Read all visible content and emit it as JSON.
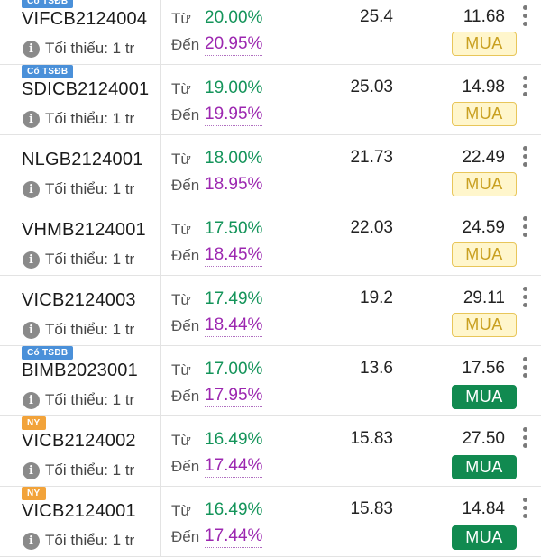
{
  "bonds": [
    {
      "tag": "Có TSĐB",
      "tag_color": "#4a90d9",
      "code": "VIFCB2124004",
      "minimum": "Tối thiểu: 1 tr",
      "from_label": "Từ",
      "from_rate": "20.00%",
      "to_label": "Đến",
      "to_rate": "20.95%",
      "value1": "25.4",
      "value2": "11.68",
      "buy_label": "MUA",
      "buy_style": "light"
    },
    {
      "tag": "Có TSĐB",
      "tag_color": "#4a90d9",
      "code": "SDICB2124001",
      "minimum": "Tối thiểu: 1 tr",
      "from_label": "Từ",
      "from_rate": "19.00%",
      "to_label": "Đến",
      "to_rate": "19.95%",
      "value1": "25.03",
      "value2": "14.98",
      "buy_label": "MUA",
      "buy_style": "light"
    },
    {
      "tag": "",
      "code": "NLGB2124001",
      "minimum": "Tối thiểu: 1 tr",
      "from_label": "Từ",
      "from_rate": "18.00%",
      "to_label": "Đến",
      "to_rate": "18.95%",
      "value1": "21.73",
      "value2": "22.49",
      "buy_label": "MUA",
      "buy_style": "light"
    },
    {
      "tag": "",
      "code": "VHMB2124001",
      "minimum": "Tối thiểu: 1 tr",
      "from_label": "Từ",
      "from_rate": "17.50%",
      "to_label": "Đến",
      "to_rate": "18.45%",
      "value1": "22.03",
      "value2": "24.59",
      "buy_label": "MUA",
      "buy_style": "light"
    },
    {
      "tag": "",
      "code": "VICB2124003",
      "minimum": "Tối thiểu: 1 tr",
      "from_label": "Từ",
      "from_rate": "17.49%",
      "to_label": "Đến",
      "to_rate": "18.44%",
      "value1": "19.2",
      "value2": "29.11",
      "buy_label": "MUA",
      "buy_style": "light"
    },
    {
      "tag": "Có TSĐB",
      "tag_color": "#4a90d9",
      "code": "BIMB2023001",
      "minimum": "Tối thiểu: 1 tr",
      "from_label": "Từ",
      "from_rate": "17.00%",
      "to_label": "Đến",
      "to_rate": "17.95%",
      "value1": "13.6",
      "value2": "17.56",
      "buy_label": "MUA",
      "buy_style": "green"
    },
    {
      "tag": "NY",
      "tag_color": "#f2a33a",
      "code": "VICB2124002",
      "minimum": "Tối thiểu: 1 tr",
      "from_label": "Từ",
      "from_rate": "16.49%",
      "to_label": "Đến",
      "to_rate": "17.44%",
      "value1": "15.83",
      "value2": "27.50",
      "buy_label": "MUA",
      "buy_style": "green"
    },
    {
      "tag": "NY",
      "tag_color": "#f2a33a",
      "code": "VICB2124001",
      "minimum": "Tối thiểu: 1 tr",
      "from_label": "Từ",
      "from_rate": "16.49%",
      "to_label": "Đến",
      "to_rate": "17.44%",
      "value1": "15.83",
      "value2": "14.84",
      "buy_label": "MUA",
      "buy_style": "green"
    }
  ],
  "colors": {
    "from_rate": "#14945a",
    "to_rate": "#9c27b0",
    "buy_green": "#118a50",
    "buy_light_bg": "#fff6cc"
  },
  "icons": {
    "info": "info-icon",
    "menu": "more-vertical-icon"
  }
}
